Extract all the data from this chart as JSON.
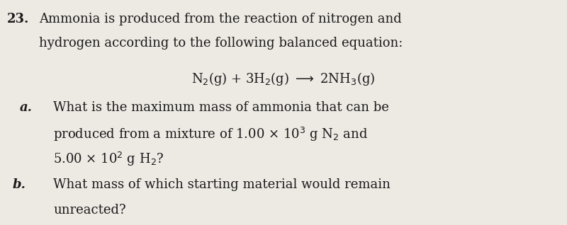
{
  "bg_color": "#ede9e3",
  "text_color": "#1a1a1a",
  "problem_num": "23.",
  "line1": "Ammonia is produced from the reaction of nitrogen and",
  "line2": "hydrogen according to the following balanced equation:",
  "equation": "N$_2$(g) + 3H$_2$(g) ⟶ 2NH$_3$(g)",
  "part_a_label": "a.",
  "part_a_line1": "What is the maximum mass of ammonia that can be",
  "part_a_line2": "produced from a mixture of 1.00 × 10$^3$ g N$_2$ and",
  "part_a_line3": "5.00 × 10$^2$ g H$_2$?",
  "part_b_label": "b.",
  "part_b_line1": "What mass of which starting material would remain",
  "part_b_line2": "unreacted?",
  "fontsize_main": 13.0,
  "font_family": "DejaVu Serif"
}
